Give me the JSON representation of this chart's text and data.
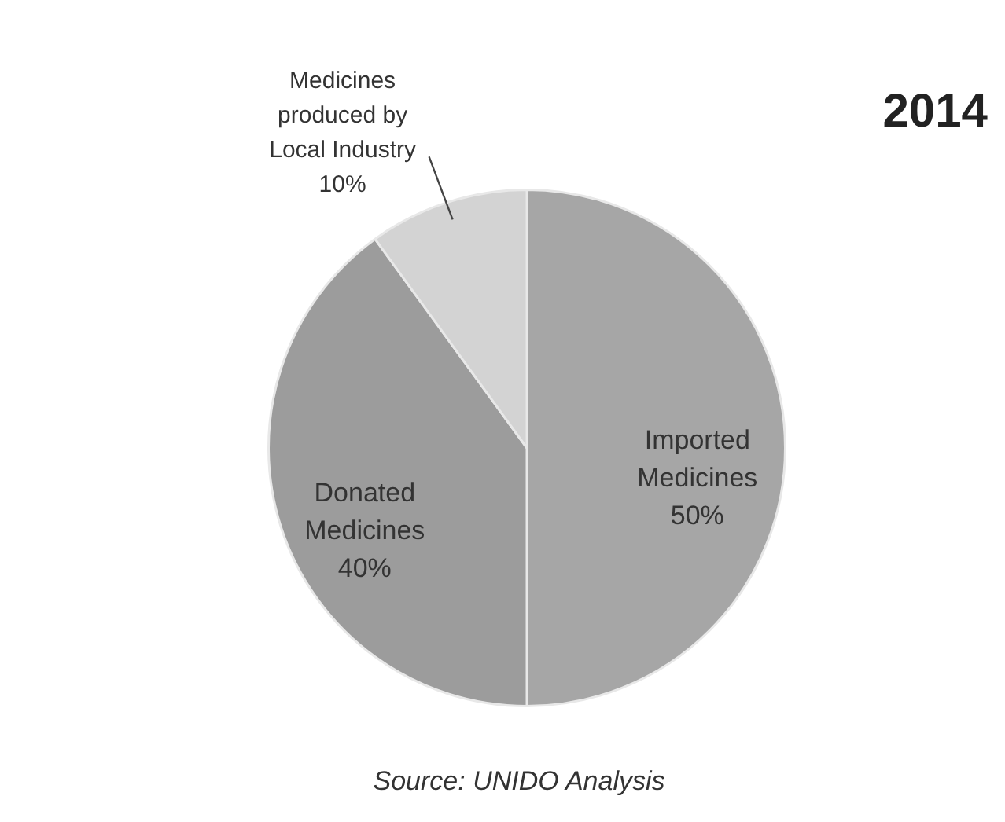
{
  "chart_data": {
    "type": "pie",
    "title": "2014",
    "categories": [
      "Imported Medicines",
      "Donated Medicines",
      "Medicines produced by Local Industry"
    ],
    "values": [
      50,
      40,
      10
    ],
    "value_labels": [
      "50%",
      "40%",
      "10%"
    ],
    "colors": [
      "#a6a6a6",
      "#9c9c9c",
      "#d3d3d3"
    ],
    "annotations": [
      "Source: UNIDO Analysis"
    ],
    "legend": false
  }
}
